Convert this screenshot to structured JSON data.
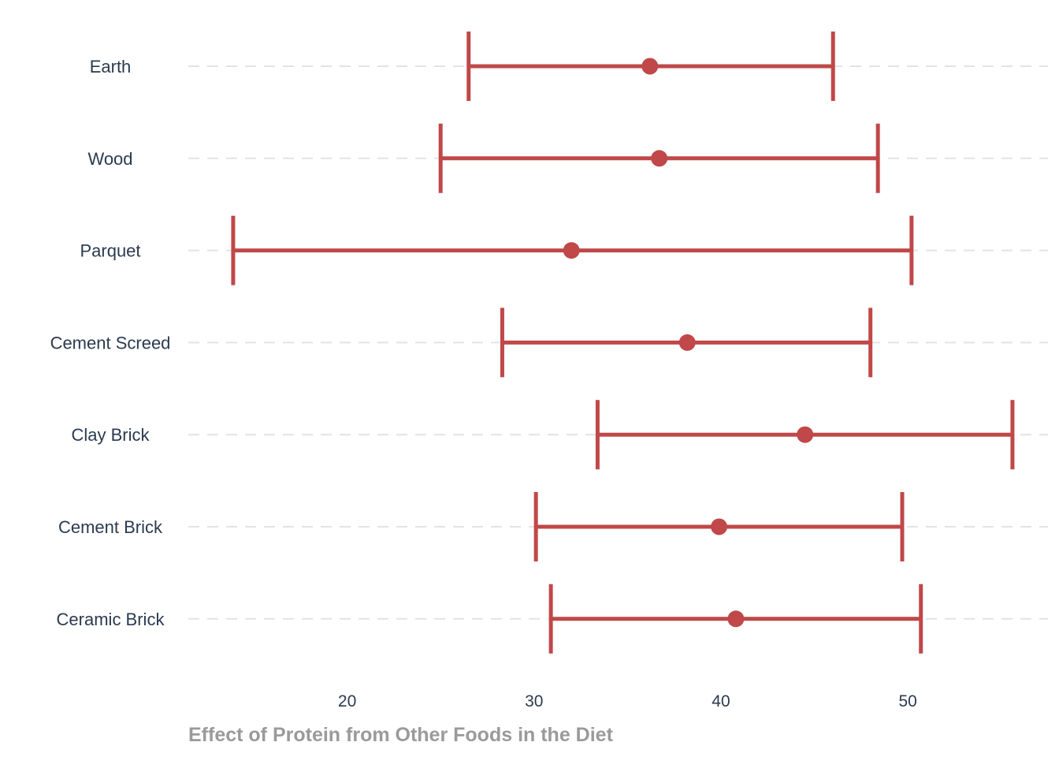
{
  "chart_data": {
    "type": "errorbar",
    "title": "",
    "xlabel": "Effect of Protein from Other Foods in the Diet",
    "ylabel": "",
    "xlim": [
      11.5,
      57.5
    ],
    "xticks": [
      20,
      30,
      40,
      50
    ],
    "grid": "horizontal-dashed",
    "color": "#c04848",
    "categories": [
      "Earth",
      "Wood",
      "Parquet",
      "Cement Screed",
      "Clay Brick",
      "Cement Brick",
      "Ceramic Brick"
    ],
    "estimate": [
      36.2,
      36.7,
      32.0,
      38.2,
      44.5,
      39.9,
      40.8
    ],
    "lower": [
      26.5,
      25.0,
      13.9,
      28.3,
      33.4,
      30.1,
      30.9
    ],
    "upper": [
      46.0,
      48.4,
      50.2,
      48.0,
      55.6,
      49.7,
      50.7
    ]
  }
}
